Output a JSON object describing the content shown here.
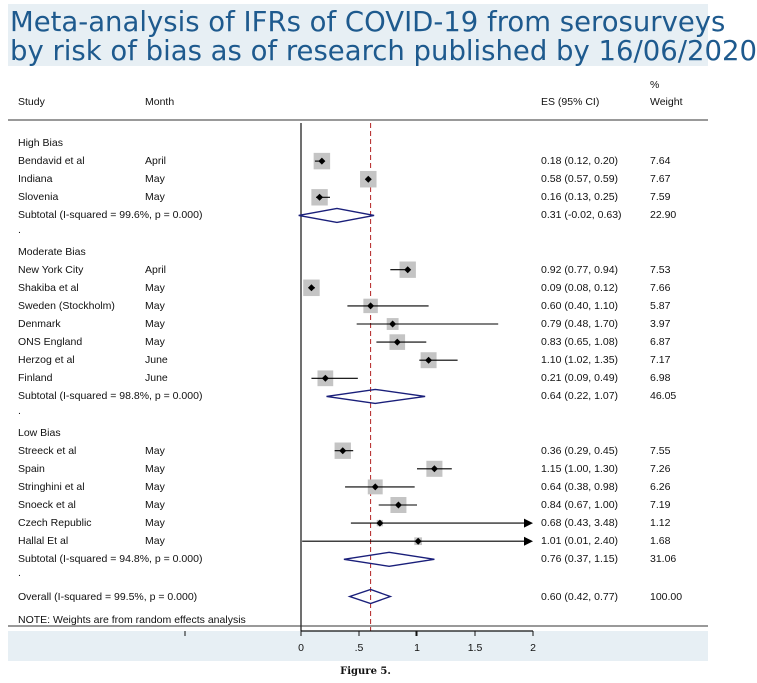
{
  "title": {
    "line1": "Meta-analysis of IFRs of COVID-19 from serosurveys",
    "line2": "by risk of bias as of research published by 16/06/2020"
  },
  "headers": {
    "study": "Study",
    "month": "Month",
    "es": "ES (95% CI)",
    "weight_top": "%",
    "weight_bottom": "Weight"
  },
  "footnote": "NOTE: Weights are from random effects analysis",
  "caption": "Figure 5.",
  "colors": {
    "title": "#1e5a8e",
    "band": "#e7eff4",
    "diamond": "#1a1f7a",
    "overall_line": "#b22222",
    "box": "#c4c4c4"
  },
  "chart_data": {
    "type": "forest",
    "xlim": [
      0,
      2
    ],
    "x_ticks": [
      0,
      0.5,
      1,
      1.5,
      2
    ],
    "x_tick_labels": [
      "0",
      ".5",
      "1",
      "1.5",
      "2"
    ],
    "overall_es": 0.6,
    "groups": [
      {
        "name": "High Bias",
        "studies": [
          {
            "study": "Bendavid et al",
            "month": "April",
            "es": 0.18,
            "lo": 0.12,
            "hi": 0.2,
            "ci": "0.18 (0.12, 0.20)",
            "weight": "7.64"
          },
          {
            "study": "Indiana",
            "month": "May",
            "es": 0.58,
            "lo": 0.57,
            "hi": 0.59,
            "ci": "0.58 (0.57, 0.59)",
            "weight": "7.67"
          },
          {
            "study": "Slovenia",
            "month": "May",
            "es": 0.16,
            "lo": 0.13,
            "hi": 0.25,
            "ci": "0.16 (0.13, 0.25)",
            "weight": "7.59"
          }
        ],
        "subtotal": {
          "label": "Subtotal  (I-squared = 99.6%, p = 0.000)",
          "es": 0.31,
          "lo": -0.02,
          "hi": 0.63,
          "ci": "0.31 (-0.02, 0.63)",
          "weight": "22.90"
        }
      },
      {
        "name": "Moderate Bias",
        "studies": [
          {
            "study": "New York City",
            "month": "April",
            "es": 0.92,
            "lo": 0.77,
            "hi": 0.94,
            "ci": "0.92 (0.77, 0.94)",
            "weight": "7.53"
          },
          {
            "study": "Shakiba et al",
            "month": "May",
            "es": 0.09,
            "lo": 0.08,
            "hi": 0.12,
            "ci": "0.09 (0.08, 0.12)",
            "weight": "7.66"
          },
          {
            "study": "Sweden (Stockholm)",
            "month": "May",
            "es": 0.6,
            "lo": 0.4,
            "hi": 1.1,
            "ci": "0.60 (0.40, 1.10)",
            "weight": "5.87"
          },
          {
            "study": "Denmark",
            "month": "May",
            "es": 0.79,
            "lo": 0.48,
            "hi": 1.7,
            "ci": "0.79 (0.48, 1.70)",
            "weight": "3.97"
          },
          {
            "study": "ONS England",
            "month": "May",
            "es": 0.83,
            "lo": 0.65,
            "hi": 1.08,
            "ci": "0.83 (0.65, 1.08)",
            "weight": "6.87"
          },
          {
            "study": "Herzog et al",
            "month": "June",
            "es": 1.1,
            "lo": 1.02,
            "hi": 1.35,
            "ci": "1.10 (1.02, 1.35)",
            "weight": "7.17"
          },
          {
            "study": "Finland",
            "month": "June",
            "es": 0.21,
            "lo": 0.09,
            "hi": 0.49,
            "ci": "0.21 (0.09, 0.49)",
            "weight": "6.98"
          }
        ],
        "subtotal": {
          "label": "Subtotal  (I-squared = 98.8%, p = 0.000)",
          "es": 0.64,
          "lo": 0.22,
          "hi": 1.07,
          "ci": "0.64 (0.22, 1.07)",
          "weight": "46.05"
        }
      },
      {
        "name": "Low Bias",
        "studies": [
          {
            "study": "Streeck et al",
            "month": "May",
            "es": 0.36,
            "lo": 0.29,
            "hi": 0.45,
            "ci": "0.36 (0.29, 0.45)",
            "weight": "7.55"
          },
          {
            "study": "Spain",
            "month": "May",
            "es": 1.15,
            "lo": 1.0,
            "hi": 1.3,
            "ci": "1.15 (1.00, 1.30)",
            "weight": "7.26"
          },
          {
            "study": "Stringhini et al",
            "month": "May",
            "es": 0.64,
            "lo": 0.38,
            "hi": 0.98,
            "ci": "0.64 (0.38, 0.98)",
            "weight": "6.26"
          },
          {
            "study": "Snoeck et al",
            "month": "May",
            "es": 0.84,
            "lo": 0.67,
            "hi": 1.0,
            "ci": "0.84 (0.67, 1.00)",
            "weight": "7.19"
          },
          {
            "study": "Czech Republic",
            "month": "May",
            "es": 0.68,
            "lo": 0.43,
            "hi": 3.48,
            "ci": "0.68 (0.43, 3.48)",
            "weight": "1.12"
          },
          {
            "study": "Hallal Et al",
            "month": "May",
            "es": 1.01,
            "lo": 0.01,
            "hi": 2.4,
            "ci": "1.01 (0.01, 2.40)",
            "weight": "1.68"
          }
        ],
        "subtotal": {
          "label": "Subtotal  (I-squared = 94.8%, p = 0.000)",
          "es": 0.76,
          "lo": 0.37,
          "hi": 1.15,
          "ci": "0.76 (0.37, 1.15)",
          "weight": "31.06"
        }
      }
    ],
    "overall": {
      "label": "Overall  (I-squared = 99.5%, p = 0.000)",
      "es": 0.6,
      "lo": 0.42,
      "hi": 0.77,
      "ci": "0.60 (0.42, 0.77)",
      "weight": "100.00"
    }
  }
}
